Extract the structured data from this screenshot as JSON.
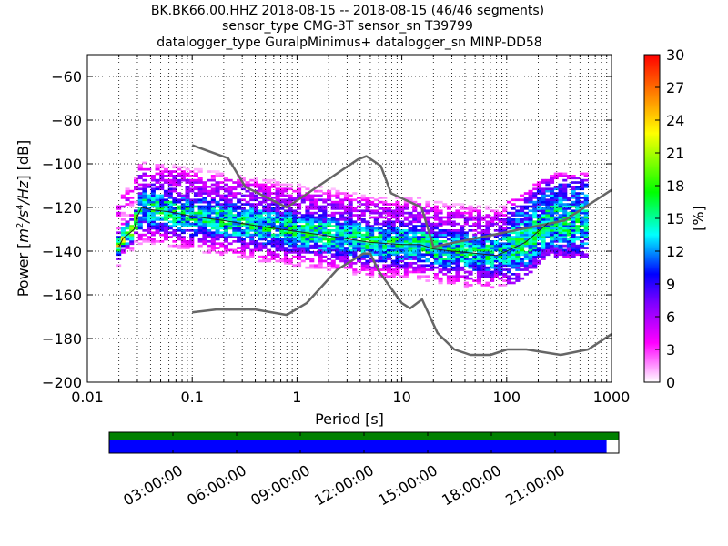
{
  "figure": {
    "title_lines": [
      "BK.BK66.00.HHZ   2018-08-15 -- 2018-08-15  (46/46 segments)",
      "sensor_type CMG-3T sensor_sn T39799",
      "datalogger_type GuralpMinimus+ datalogger_sn MINP-DD58"
    ]
  },
  "chart_data": {
    "type": "heatmap",
    "xlabel": "Period [s]",
    "ylabel": "Power [m²/s⁴/Hz] [dB]",
    "ylabel_parts": {
      "pre": "Power [",
      "m": "m",
      "exp2": "2",
      "mid1": "/s",
      "exp4": "4",
      "mid2": "/",
      "hz": "Hz",
      "post": "] [dB]"
    },
    "xscale": "log",
    "xlim": [
      0.01,
      1000
    ],
    "ylim": [
      -200,
      -50
    ],
    "x_ticks": [
      0.01,
      0.1,
      1,
      10,
      100,
      1000
    ],
    "x_tick_labels": [
      "0.01",
      "0.1",
      "1",
      "10",
      "100",
      "1000"
    ],
    "y_ticks": [
      -200,
      -180,
      -160,
      -140,
      -120,
      -100,
      -80,
      -60
    ],
    "y_tick_labels": [
      "−200",
      "−180",
      "−160",
      "−140",
      "−120",
      "−100",
      "−80",
      "−60"
    ],
    "grid": "dotted",
    "colorbar": {
      "label": "[%]",
      "range": [
        0,
        30
      ],
      "ticks": [
        "0",
        "3",
        "6",
        "9",
        "12",
        "15",
        "18",
        "21",
        "24",
        "27",
        "30"
      ],
      "colors": [
        "#ffffff",
        "#ff00ff",
        "#7f00ff",
        "#0000ff",
        "#00ffff",
        "#00ff00",
        "#ffff00",
        "#ff8000",
        "#ff0000"
      ]
    },
    "noise_models": [
      {
        "period": [
          0.1,
          0.22,
          0.32,
          0.8,
          3.8,
          4.6,
          6.3,
          7.9,
          15.4,
          20,
          354,
          1000
        ],
        "db": [
          -91.5,
          -97.4,
          -110.5,
          -120,
          -98,
          -96.5,
          -101,
          -113.5,
          -120,
          -138,
          -126,
          -112
        ]
      },
      {
        "period": [
          0.1,
          0.17,
          0.4,
          0.8,
          1.24,
          2.4,
          4.3,
          5,
          6,
          10,
          12,
          15.6,
          21.9,
          31.6,
          45,
          70,
          101,
          154,
          328,
          600,
          1000
        ],
        "db": [
          -168,
          -166.7,
          -166.7,
          -169.2,
          -163.7,
          -148.6,
          -141.1,
          -141.1,
          -149,
          -163.8,
          -166.2,
          -162.1,
          -177.5,
          -185,
          -187.5,
          -187.5,
          -185,
          -185,
          -187.5,
          -185,
          -178
        ]
      }
    ],
    "mode_curve": {
      "period": [
        0.02,
        0.022,
        0.025,
        0.028,
        0.03,
        0.033,
        0.04,
        0.06,
        0.1,
        0.2,
        0.5,
        1,
        2,
        5,
        10,
        15,
        20,
        30,
        50,
        80,
        100,
        150,
        200,
        250
      ],
      "db": [
        -138,
        -134,
        -132,
        -130,
        -124,
        -120,
        -121,
        -122,
        -124,
        -126,
        -129,
        -131,
        -133,
        -136,
        -137,
        -137,
        -139,
        -140,
        -141,
        -142,
        -140,
        -136,
        -131,
        -127
      ]
    },
    "time_availability": {
      "ticks": [
        "03:00:00",
        "06:00:00",
        "09:00:00",
        "12:00:00",
        "15:00:00",
        "18:00:00",
        "21:00:00"
      ],
      "coverage_fraction": 0.976,
      "gap_color": "#008000",
      "data_color": "#0000ff"
    }
  }
}
